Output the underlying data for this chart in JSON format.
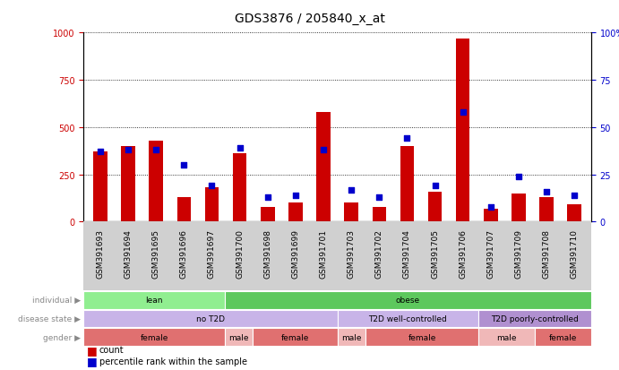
{
  "title": "GDS3876 / 205840_x_at",
  "samples": [
    "GSM391693",
    "GSM391694",
    "GSM391695",
    "GSM391696",
    "GSM391697",
    "GSM391700",
    "GSM391698",
    "GSM391699",
    "GSM391701",
    "GSM391703",
    "GSM391702",
    "GSM391704",
    "GSM391705",
    "GSM391706",
    "GSM391707",
    "GSM391709",
    "GSM391708",
    "GSM391710"
  ],
  "counts": [
    370,
    400,
    430,
    130,
    180,
    360,
    80,
    100,
    580,
    100,
    80,
    400,
    160,
    970,
    70,
    150,
    130,
    90
  ],
  "percentiles": [
    37,
    38,
    38,
    30,
    19,
    39,
    13,
    14,
    38,
    17,
    13,
    44,
    19,
    58,
    8,
    24,
    16,
    14
  ],
  "individual_groups": [
    {
      "label": "lean",
      "start": 0,
      "end": 5,
      "color": "#90ee90"
    },
    {
      "label": "obese",
      "start": 5,
      "end": 18,
      "color": "#5dc85d"
    }
  ],
  "disease_groups": [
    {
      "label": "no T2D",
      "start": 0,
      "end": 9,
      "color": "#c8b4e8"
    },
    {
      "label": "T2D well-controlled",
      "start": 9,
      "end": 14,
      "color": "#c8b4e8"
    },
    {
      "label": "T2D poorly-controlled",
      "start": 14,
      "end": 18,
      "color": "#b090d0"
    }
  ],
  "gender_groups": [
    {
      "label": "female",
      "start": 0,
      "end": 5,
      "color": "#e07070"
    },
    {
      "label": "male",
      "start": 5,
      "end": 6,
      "color": "#f0b8b8"
    },
    {
      "label": "female",
      "start": 6,
      "end": 9,
      "color": "#e07070"
    },
    {
      "label": "male",
      "start": 9,
      "end": 10,
      "color": "#f0b8b8"
    },
    {
      "label": "female",
      "start": 10,
      "end": 14,
      "color": "#e07070"
    },
    {
      "label": "male",
      "start": 14,
      "end": 16,
      "color": "#f0b8b8"
    },
    {
      "label": "female",
      "start": 16,
      "end": 18,
      "color": "#e07070"
    }
  ],
  "ylim_left": [
    0,
    1000
  ],
  "ylim_right": [
    0,
    100
  ],
  "yticks_left": [
    0,
    250,
    500,
    750,
    1000
  ],
  "yticks_right": [
    0,
    25,
    50,
    75,
    100
  ],
  "bar_color": "#cc0000",
  "scatter_color": "#0000cc",
  "background_color": "#ffffff",
  "label_fontsize": 6.5,
  "tick_fontsize": 7,
  "title_fontsize": 10,
  "ann_label_color": "#888888"
}
